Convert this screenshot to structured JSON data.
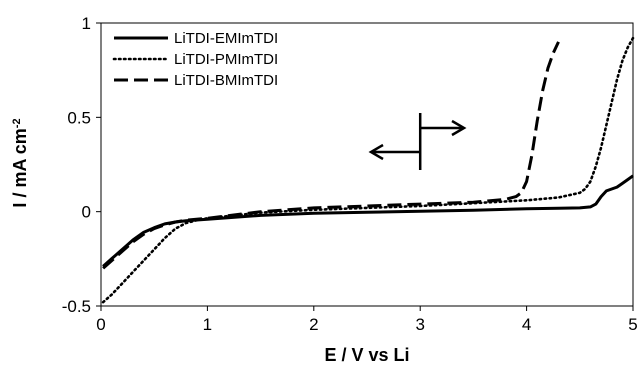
{
  "chart_data": {
    "type": "line",
    "xlabel": "E / V vs Li",
    "ylabel": "I / mA cm",
    "ylabel_superscript": "-2",
    "xlim": [
      0,
      5
    ],
    "ylim": [
      -0.5,
      1
    ],
    "xticks": [
      "0",
      "1",
      "2",
      "3",
      "4",
      "5"
    ],
    "yticks": [
      "-0.5",
      "0",
      "0.5",
      "1"
    ],
    "grid": false,
    "legend_position": "top-left",
    "series": [
      {
        "name": "LiTDI-EMImTDI",
        "style": "solid",
        "x": [
          0.02,
          0.1,
          0.2,
          0.3,
          0.4,
          0.5,
          0.6,
          0.7,
          0.8,
          1.0,
          1.5,
          2.0,
          2.5,
          3.0,
          3.5,
          4.0,
          4.3,
          4.5,
          4.6,
          4.65,
          4.7,
          4.75,
          4.8,
          4.85,
          4.9,
          4.95,
          5.0
        ],
        "y": [
          -0.29,
          -0.25,
          -0.2,
          -0.15,
          -0.11,
          -0.085,
          -0.065,
          -0.055,
          -0.048,
          -0.04,
          -0.02,
          -0.008,
          -0.003,
          0.002,
          0.008,
          0.015,
          0.018,
          0.02,
          0.025,
          0.04,
          0.08,
          0.11,
          0.12,
          0.13,
          0.15,
          0.17,
          0.19
        ]
      },
      {
        "name": "LiTDI-PMImTDI",
        "style": "dotted",
        "x": [
          0.02,
          0.1,
          0.2,
          0.3,
          0.4,
          0.5,
          0.6,
          0.7,
          0.8,
          0.9,
          1.0,
          1.5,
          2.0,
          2.5,
          3.0,
          3.5,
          4.0,
          4.3,
          4.5,
          4.55,
          4.6,
          4.65,
          4.7,
          4.75,
          4.8,
          4.85,
          4.9,
          4.95,
          5.0
        ],
        "y": [
          -0.48,
          -0.44,
          -0.38,
          -0.32,
          -0.26,
          -0.2,
          -0.14,
          -0.09,
          -0.06,
          -0.045,
          -0.035,
          -0.005,
          0.01,
          0.02,
          0.03,
          0.045,
          0.06,
          0.075,
          0.1,
          0.12,
          0.16,
          0.24,
          0.34,
          0.46,
          0.58,
          0.7,
          0.8,
          0.87,
          0.92
        ]
      },
      {
        "name": "LiTDI-BMImTDI",
        "style": "dashed",
        "x": [
          0.02,
          0.1,
          0.2,
          0.3,
          0.4,
          0.5,
          0.6,
          0.7,
          0.8,
          1.0,
          1.5,
          2.0,
          2.5,
          3.0,
          3.5,
          3.8,
          3.9,
          3.95,
          4.0,
          4.05,
          4.1,
          4.15,
          4.2,
          4.25,
          4.3
        ],
        "y": [
          -0.3,
          -0.26,
          -0.21,
          -0.16,
          -0.12,
          -0.09,
          -0.07,
          -0.055,
          -0.045,
          -0.035,
          0.0,
          0.02,
          0.03,
          0.04,
          0.05,
          0.065,
          0.08,
          0.1,
          0.16,
          0.3,
          0.48,
          0.64,
          0.76,
          0.84,
          0.9
        ]
      }
    ]
  }
}
